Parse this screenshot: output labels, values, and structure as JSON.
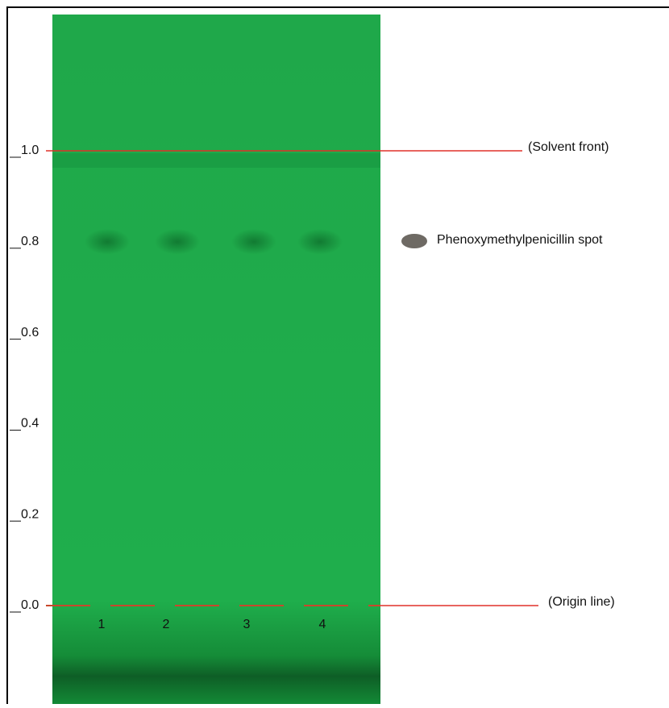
{
  "scale": {
    "ticks": [
      {
        "value": 1.0,
        "label": "1.0"
      },
      {
        "value": 0.8,
        "label": "0.8"
      },
      {
        "value": 0.6,
        "label": "0.6"
      },
      {
        "value": 0.4,
        "label": "0.4"
      },
      {
        "value": 0.2,
        "label": "0.2"
      },
      {
        "value": 0.0,
        "label": "0.0"
      }
    ]
  },
  "annotations": {
    "solvent_front": "(Solvent front)",
    "origin_line": "(Origin line)",
    "legend": "Phenoxymethylpenicillin spot"
  },
  "lanes": [
    {
      "label": "1",
      "spot_rf": 0.8
    },
    {
      "label": "2",
      "spot_rf": 0.8
    },
    {
      "label": "3",
      "spot_rf": 0.8
    },
    {
      "label": "4",
      "spot_rf": 0.8
    }
  ]
}
